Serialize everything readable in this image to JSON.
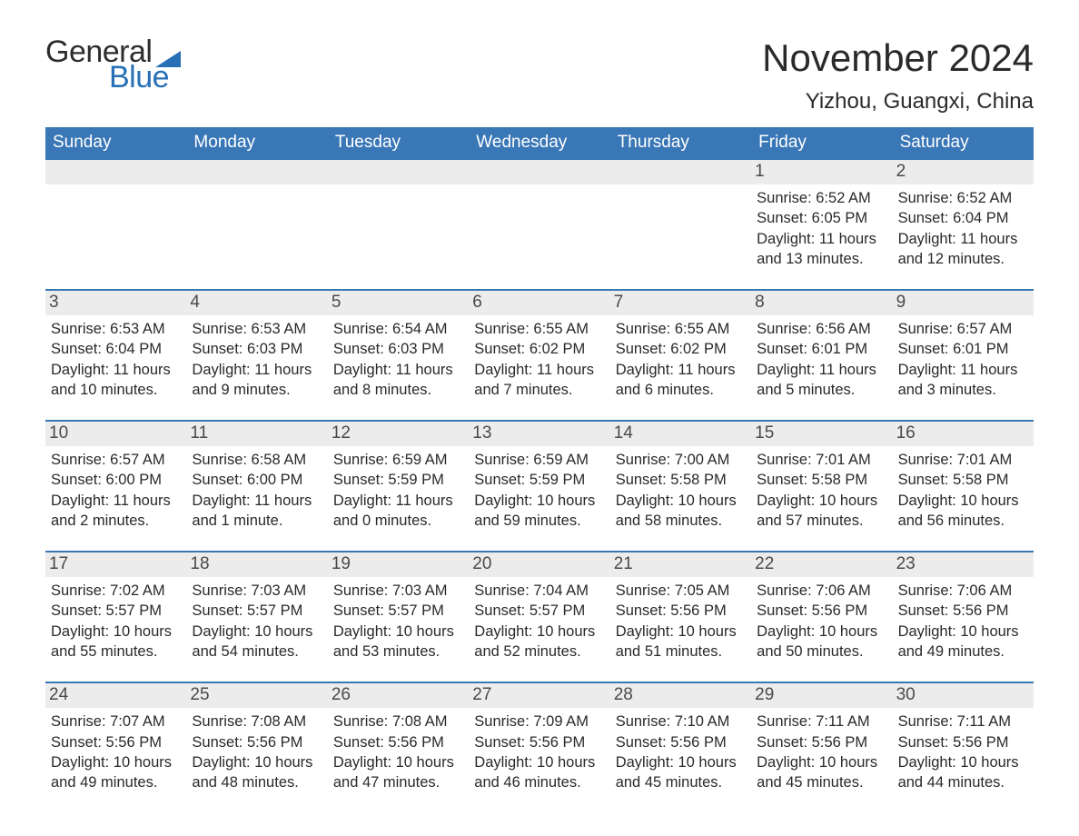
{
  "logo": {
    "text_top": "General",
    "text_bottom": "Blue",
    "accent_color": "#2770b5",
    "text_color": "#2d2d2d"
  },
  "title": "November 2024",
  "location": "Yizhou, Guangxi, China",
  "colors": {
    "header_bg": "#3a77b7",
    "header_text": "#ffffff",
    "daynum_bg": "#ececec",
    "daynum_text": "#4a4a4a",
    "body_text": "#2a2a2a",
    "week_border": "#3a77b7",
    "page_bg": "#ffffff"
  },
  "fonts": {
    "title_size_pt": 32,
    "location_size_pt": 18,
    "weekday_size_pt": 14,
    "body_size_pt": 12
  },
  "weekdays": [
    "Sunday",
    "Monday",
    "Tuesday",
    "Wednesday",
    "Thursday",
    "Friday",
    "Saturday"
  ],
  "weeks": [
    [
      {
        "empty": true
      },
      {
        "empty": true
      },
      {
        "empty": true
      },
      {
        "empty": true
      },
      {
        "empty": true
      },
      {
        "num": "1",
        "sunrise": "Sunrise: 6:52 AM",
        "sunset": "Sunset: 6:05 PM",
        "daylight": "Daylight: 11 hours and 13 minutes."
      },
      {
        "num": "2",
        "sunrise": "Sunrise: 6:52 AM",
        "sunset": "Sunset: 6:04 PM",
        "daylight": "Daylight: 11 hours and 12 minutes."
      }
    ],
    [
      {
        "num": "3",
        "sunrise": "Sunrise: 6:53 AM",
        "sunset": "Sunset: 6:04 PM",
        "daylight": "Daylight: 11 hours and 10 minutes."
      },
      {
        "num": "4",
        "sunrise": "Sunrise: 6:53 AM",
        "sunset": "Sunset: 6:03 PM",
        "daylight": "Daylight: 11 hours and 9 minutes."
      },
      {
        "num": "5",
        "sunrise": "Sunrise: 6:54 AM",
        "sunset": "Sunset: 6:03 PM",
        "daylight": "Daylight: 11 hours and 8 minutes."
      },
      {
        "num": "6",
        "sunrise": "Sunrise: 6:55 AM",
        "sunset": "Sunset: 6:02 PM",
        "daylight": "Daylight: 11 hours and 7 minutes."
      },
      {
        "num": "7",
        "sunrise": "Sunrise: 6:55 AM",
        "sunset": "Sunset: 6:02 PM",
        "daylight": "Daylight: 11 hours and 6 minutes."
      },
      {
        "num": "8",
        "sunrise": "Sunrise: 6:56 AM",
        "sunset": "Sunset: 6:01 PM",
        "daylight": "Daylight: 11 hours and 5 minutes."
      },
      {
        "num": "9",
        "sunrise": "Sunrise: 6:57 AM",
        "sunset": "Sunset: 6:01 PM",
        "daylight": "Daylight: 11 hours and 3 minutes."
      }
    ],
    [
      {
        "num": "10",
        "sunrise": "Sunrise: 6:57 AM",
        "sunset": "Sunset: 6:00 PM",
        "daylight": "Daylight: 11 hours and 2 minutes."
      },
      {
        "num": "11",
        "sunrise": "Sunrise: 6:58 AM",
        "sunset": "Sunset: 6:00 PM",
        "daylight": "Daylight: 11 hours and 1 minute."
      },
      {
        "num": "12",
        "sunrise": "Sunrise: 6:59 AM",
        "sunset": "Sunset: 5:59 PM",
        "daylight": "Daylight: 11 hours and 0 minutes."
      },
      {
        "num": "13",
        "sunrise": "Sunrise: 6:59 AM",
        "sunset": "Sunset: 5:59 PM",
        "daylight": "Daylight: 10 hours and 59 minutes."
      },
      {
        "num": "14",
        "sunrise": "Sunrise: 7:00 AM",
        "sunset": "Sunset: 5:58 PM",
        "daylight": "Daylight: 10 hours and 58 minutes."
      },
      {
        "num": "15",
        "sunrise": "Sunrise: 7:01 AM",
        "sunset": "Sunset: 5:58 PM",
        "daylight": "Daylight: 10 hours and 57 minutes."
      },
      {
        "num": "16",
        "sunrise": "Sunrise: 7:01 AM",
        "sunset": "Sunset: 5:58 PM",
        "daylight": "Daylight: 10 hours and 56 minutes."
      }
    ],
    [
      {
        "num": "17",
        "sunrise": "Sunrise: 7:02 AM",
        "sunset": "Sunset: 5:57 PM",
        "daylight": "Daylight: 10 hours and 55 minutes."
      },
      {
        "num": "18",
        "sunrise": "Sunrise: 7:03 AM",
        "sunset": "Sunset: 5:57 PM",
        "daylight": "Daylight: 10 hours and 54 minutes."
      },
      {
        "num": "19",
        "sunrise": "Sunrise: 7:03 AM",
        "sunset": "Sunset: 5:57 PM",
        "daylight": "Daylight: 10 hours and 53 minutes."
      },
      {
        "num": "20",
        "sunrise": "Sunrise: 7:04 AM",
        "sunset": "Sunset: 5:57 PM",
        "daylight": "Daylight: 10 hours and 52 minutes."
      },
      {
        "num": "21",
        "sunrise": "Sunrise: 7:05 AM",
        "sunset": "Sunset: 5:56 PM",
        "daylight": "Daylight: 10 hours and 51 minutes."
      },
      {
        "num": "22",
        "sunrise": "Sunrise: 7:06 AM",
        "sunset": "Sunset: 5:56 PM",
        "daylight": "Daylight: 10 hours and 50 minutes."
      },
      {
        "num": "23",
        "sunrise": "Sunrise: 7:06 AM",
        "sunset": "Sunset: 5:56 PM",
        "daylight": "Daylight: 10 hours and 49 minutes."
      }
    ],
    [
      {
        "num": "24",
        "sunrise": "Sunrise: 7:07 AM",
        "sunset": "Sunset: 5:56 PM",
        "daylight": "Daylight: 10 hours and 49 minutes."
      },
      {
        "num": "25",
        "sunrise": "Sunrise: 7:08 AM",
        "sunset": "Sunset: 5:56 PM",
        "daylight": "Daylight: 10 hours and 48 minutes."
      },
      {
        "num": "26",
        "sunrise": "Sunrise: 7:08 AM",
        "sunset": "Sunset: 5:56 PM",
        "daylight": "Daylight: 10 hours and 47 minutes."
      },
      {
        "num": "27",
        "sunrise": "Sunrise: 7:09 AM",
        "sunset": "Sunset: 5:56 PM",
        "daylight": "Daylight: 10 hours and 46 minutes."
      },
      {
        "num": "28",
        "sunrise": "Sunrise: 7:10 AM",
        "sunset": "Sunset: 5:56 PM",
        "daylight": "Daylight: 10 hours and 45 minutes."
      },
      {
        "num": "29",
        "sunrise": "Sunrise: 7:11 AM",
        "sunset": "Sunset: 5:56 PM",
        "daylight": "Daylight: 10 hours and 45 minutes."
      },
      {
        "num": "30",
        "sunrise": "Sunrise: 7:11 AM",
        "sunset": "Sunset: 5:56 PM",
        "daylight": "Daylight: 10 hours and 44 minutes."
      }
    ]
  ]
}
